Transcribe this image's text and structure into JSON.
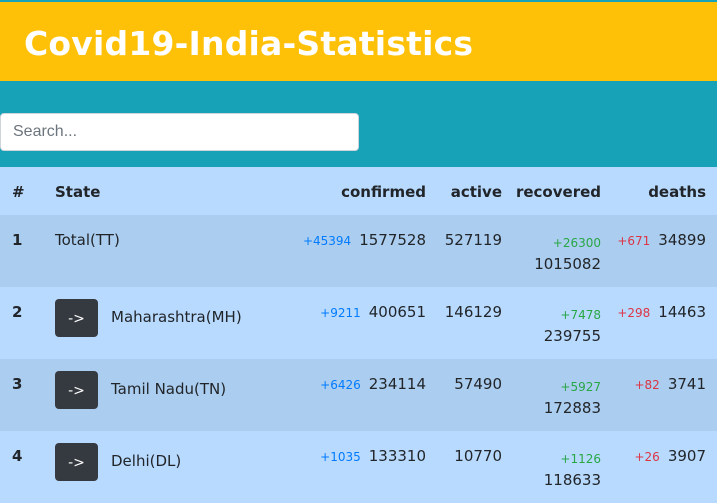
{
  "header": {
    "title": "Covid19-India-Statistics"
  },
  "search": {
    "placeholder": "Search..."
  },
  "table": {
    "columns": [
      "#",
      "State",
      "confirmed",
      "active",
      "recovered",
      "deaths"
    ],
    "rows": [
      {
        "num": "1",
        "state": "Total(TT)",
        "has_button": false,
        "button_label": "",
        "confirmed_delta": "+45394",
        "confirmed": "1577528",
        "active": "527119",
        "recovered_delta": "+26300",
        "recovered": "1015082",
        "deaths_delta": "+671",
        "deaths": "34899"
      },
      {
        "num": "2",
        "state": "Maharashtra(MH)",
        "has_button": true,
        "button_label": "->",
        "confirmed_delta": "+9211",
        "confirmed": "400651",
        "active": "146129",
        "recovered_delta": "+7478",
        "recovered": "239755",
        "deaths_delta": "+298",
        "deaths": "14463"
      },
      {
        "num": "3",
        "state": "Tamil Nadu(TN)",
        "has_button": true,
        "button_label": "->",
        "confirmed_delta": "+6426",
        "confirmed": "234114",
        "active": "57490",
        "recovered_delta": "+5927",
        "recovered": "172883",
        "deaths_delta": "+82",
        "deaths": "3741"
      },
      {
        "num": "4",
        "state": "Delhi(DL)",
        "has_button": true,
        "button_label": "->",
        "confirmed_delta": "+1035",
        "confirmed": "133310",
        "active": "10770",
        "recovered_delta": "+1126",
        "recovered": "118633",
        "deaths_delta": "+26",
        "deaths": "3907"
      }
    ]
  },
  "colors": {
    "header_bg": "#ffc107",
    "search_bg": "#17a2b8",
    "row_primary": "#b8daff",
    "delta_confirmed": "#007bff",
    "delta_recovered": "#28a745",
    "delta_deaths": "#dc3545"
  }
}
